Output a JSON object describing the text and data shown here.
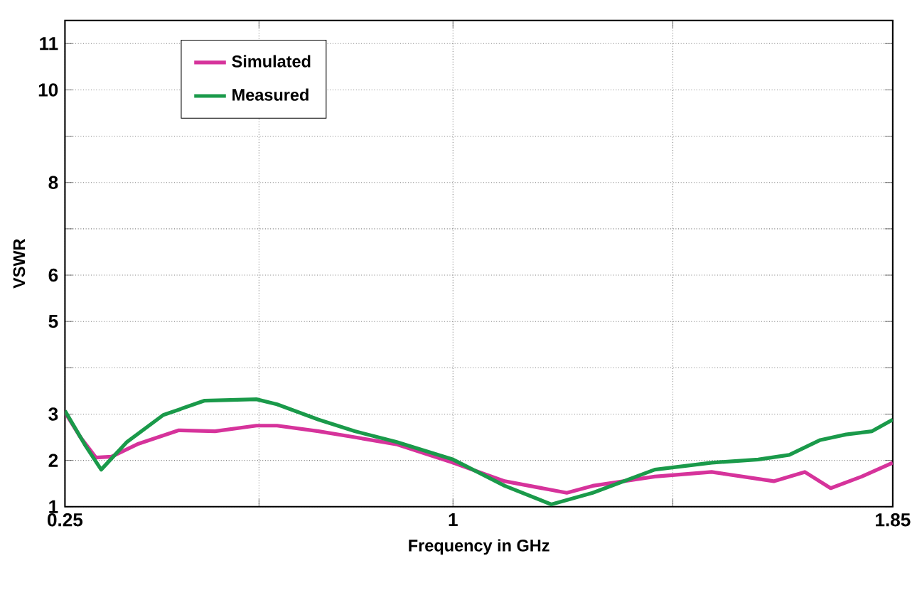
{
  "chart_data": {
    "type": "line",
    "xlabel": "Frequency in GHz",
    "ylabel": "VSWR",
    "xlim": [
      0.25,
      1.85
    ],
    "xticks": [
      0.25,
      {
        "value": 0.625,
        "label": null
      },
      1,
      {
        "value": 1.425,
        "label": null
      },
      1.85
    ],
    "ylim": [
      1,
      11.5
    ],
    "yticks": [
      1,
      2,
      3,
      {
        "value": 4,
        "label": null
      },
      5,
      6,
      {
        "value": 7,
        "label": null
      },
      8,
      {
        "value": 9,
        "label": null
      },
      10,
      11
    ],
    "grid": true,
    "legend": "top left",
    "line_style": "solid",
    "series": [
      {
        "name": "Simulated",
        "color": "#d6339b",
        "x": [
          0.25,
          0.28,
          0.31,
          0.34,
          0.39,
          0.47,
          0.54,
          0.62,
          0.66,
          0.74,
          0.81,
          0.89,
          1,
          1.1,
          1.22,
          1.27,
          1.39,
          1.5,
          1.62,
          1.68,
          1.73,
          1.79,
          1.85
        ],
        "values": [
          3.04,
          2.5,
          2.06,
          2.08,
          2.35,
          2.65,
          2.63,
          2.75,
          2.75,
          2.63,
          2.5,
          2.35,
          1.95,
          1.55,
          1.3,
          1.45,
          1.65,
          1.75,
          1.55,
          1.75,
          1.4,
          1.65,
          1.95
        ]
      },
      {
        "name": "Measured",
        "color": "#1a9a4a",
        "x": [
          0.25,
          0.29,
          0.32,
          0.37,
          0.44,
          0.52,
          0.62,
          0.66,
          0.74,
          0.81,
          0.89,
          1,
          1.1,
          1.19,
          1.27,
          1.39,
          1.5,
          1.59,
          1.65,
          1.71,
          1.76,
          1.81,
          1.85
        ],
        "values": [
          3.07,
          2.31,
          1.8,
          2.4,
          2.98,
          3.29,
          3.32,
          3.21,
          2.88,
          2.63,
          2.4,
          2.02,
          1.45,
          1.05,
          1.3,
          1.8,
          1.95,
          2.02,
          2.12,
          2.44,
          2.56,
          2.63,
          2.88
        ]
      }
    ]
  }
}
